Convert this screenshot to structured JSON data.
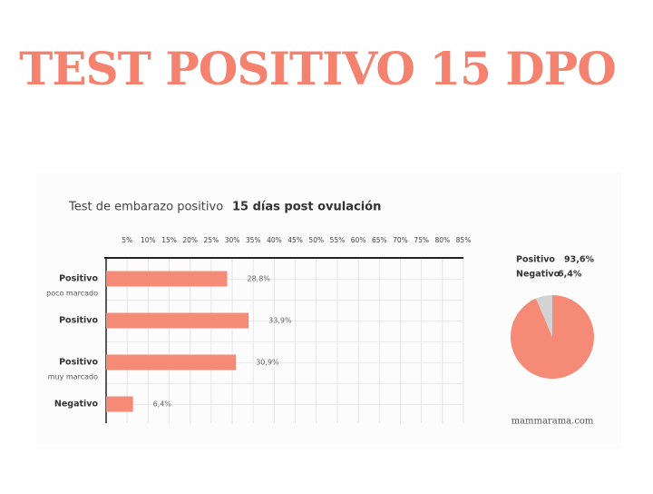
{
  "header": {
    "title": "TEST POSITIVO 15 DPO"
  },
  "chart_data": [
    {
      "type": "bar",
      "orientation": "horizontal",
      "title": "Test de embarazo positivo",
      "subtitle": "15 días post ovulación",
      "categories": [
        "Positivo",
        "Positivo",
        "Positivo",
        "Negativo"
      ],
      "category_sublabels": [
        "poco marcado",
        null,
        "muy marcado",
        null
      ],
      "values": [
        28.8,
        33.9,
        30.9,
        6.4
      ],
      "value_labels": [
        "28,8%",
        "33,9%",
        "30,9%",
        "6,4%"
      ],
      "color": "#f58b76",
      "grid": true,
      "xlim": [
        0,
        85
      ],
      "xticks": [
        {
          "value": 5,
          "label": "5%"
        },
        {
          "value": 10,
          "label": "10%"
        },
        {
          "value": 15,
          "label": "15%"
        },
        {
          "value": 20,
          "label": "20%"
        },
        {
          "value": 25,
          "label": "25%"
        },
        {
          "value": 30,
          "label": "30%"
        },
        {
          "value": 35,
          "label": "35%"
        },
        {
          "value": 40,
          "label": "40%"
        },
        {
          "value": 45,
          "label": "45%"
        },
        {
          "value": 50,
          "label": "50%"
        },
        {
          "value": 55,
          "label": "55%"
        },
        {
          "value": 60,
          "label": "60%"
        },
        {
          "value": 65,
          "label": "65%"
        },
        {
          "value": 70,
          "label": "70%"
        },
        {
          "value": 75,
          "label": "75%"
        },
        {
          "value": 80,
          "label": "80%"
        },
        {
          "value": 85,
          "label": "85%"
        }
      ]
    },
    {
      "type": "pie",
      "categories": [
        "Positivo",
        "Negativo"
      ],
      "values": [
        93.6,
        6.4
      ],
      "value_labels": [
        "93,6%",
        "6,4%"
      ],
      "colors": [
        "#f58b76",
        "#d3d3d3"
      ]
    }
  ],
  "footer": {
    "source": "mammarama.com"
  }
}
